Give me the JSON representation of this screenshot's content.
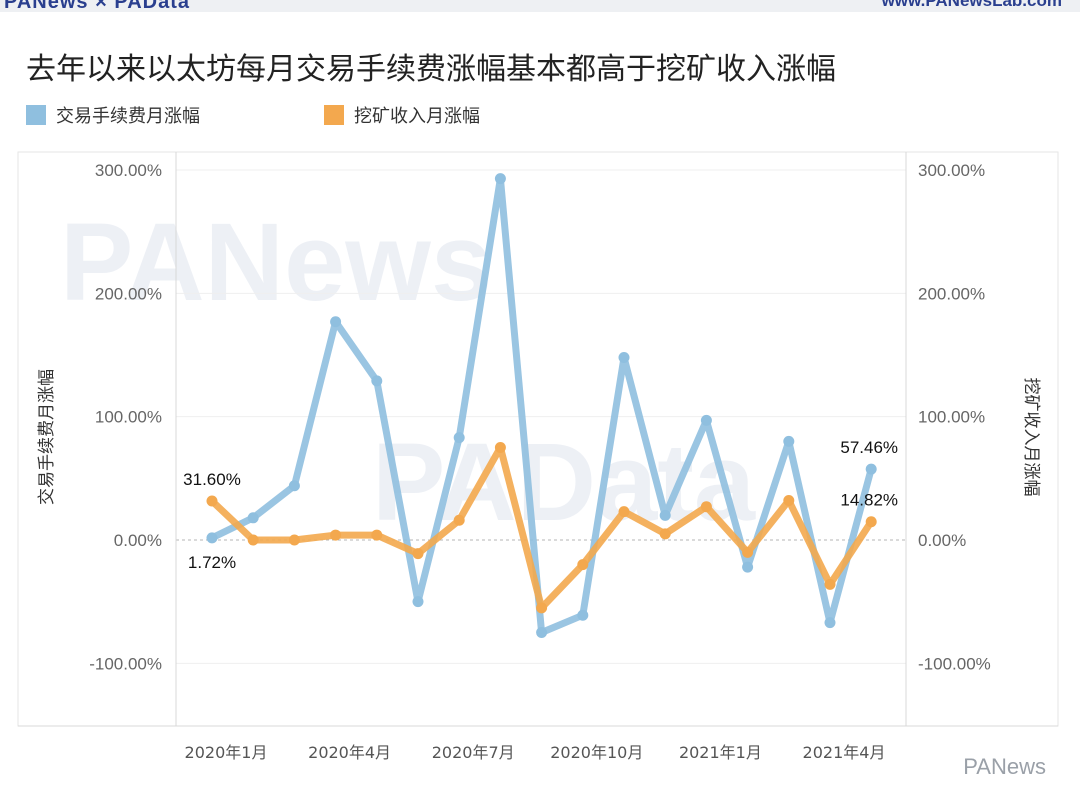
{
  "brand": {
    "left": "PANews × PAData",
    "right": "www.PANewsLab.com",
    "footer": "PANews"
  },
  "colors": {
    "fee": "#8fbfdf",
    "mining": "#f3a84e"
  },
  "chart_data": {
    "type": "line",
    "title": "去年以来以太坊每月交易手续费涨幅基本都高于挖矿收入涨幅",
    "ylabel_left": "交易手续费月涨幅",
    "ylabel_right": "挖矿收入月涨幅",
    "legend_position": "top-left",
    "ylim": [
      -150,
      300
    ],
    "yticks": [
      300,
      200,
      100,
      0,
      -100
    ],
    "ytick_labels": [
      "300.00%",
      "200.00%",
      "100.00%",
      "0.00%",
      "-100.00%"
    ],
    "x": [
      "2020-01",
      "2020-02",
      "2020-03",
      "2020-04",
      "2020-05",
      "2020-06",
      "2020-07",
      "2020-08",
      "2020-09",
      "2020-10",
      "2020-11",
      "2020-12",
      "2021-01",
      "2021-02",
      "2021-03",
      "2021-04",
      "2021-05"
    ],
    "xticks": [
      {
        "index": 0,
        "label": "2020年1月"
      },
      {
        "index": 3,
        "label": "2020年4月"
      },
      {
        "index": 6,
        "label": "2020年7月"
      },
      {
        "index": 9,
        "label": "2020年10月"
      },
      {
        "index": 12,
        "label": "2021年1月"
      },
      {
        "index": 15,
        "label": "2021年4月"
      }
    ],
    "series": [
      {
        "name": "交易手续费月涨幅",
        "color": "#8fbfdf",
        "values": [
          1.72,
          18,
          44,
          177,
          129,
          -50,
          83,
          293,
          -75,
          -61,
          148,
          20,
          97,
          -22,
          80,
          -67,
          57.46
        ]
      },
      {
        "name": "挖矿收入月涨幅",
        "color": "#f3a84e",
        "values": [
          31.6,
          0,
          0,
          4,
          4,
          -11,
          16,
          75,
          -55,
          -20,
          23,
          5,
          27,
          -10,
          32,
          -36,
          14.82
        ]
      }
    ],
    "annotations": [
      {
        "series": 1,
        "index": 0,
        "text": "31.60%",
        "pos": "above"
      },
      {
        "series": 0,
        "index": 0,
        "text": "1.72%",
        "pos": "below"
      },
      {
        "series": 0,
        "index": 16,
        "text": "57.46%",
        "pos": "above"
      },
      {
        "series": 1,
        "index": 16,
        "text": "14.82%",
        "pos": "above"
      }
    ]
  }
}
